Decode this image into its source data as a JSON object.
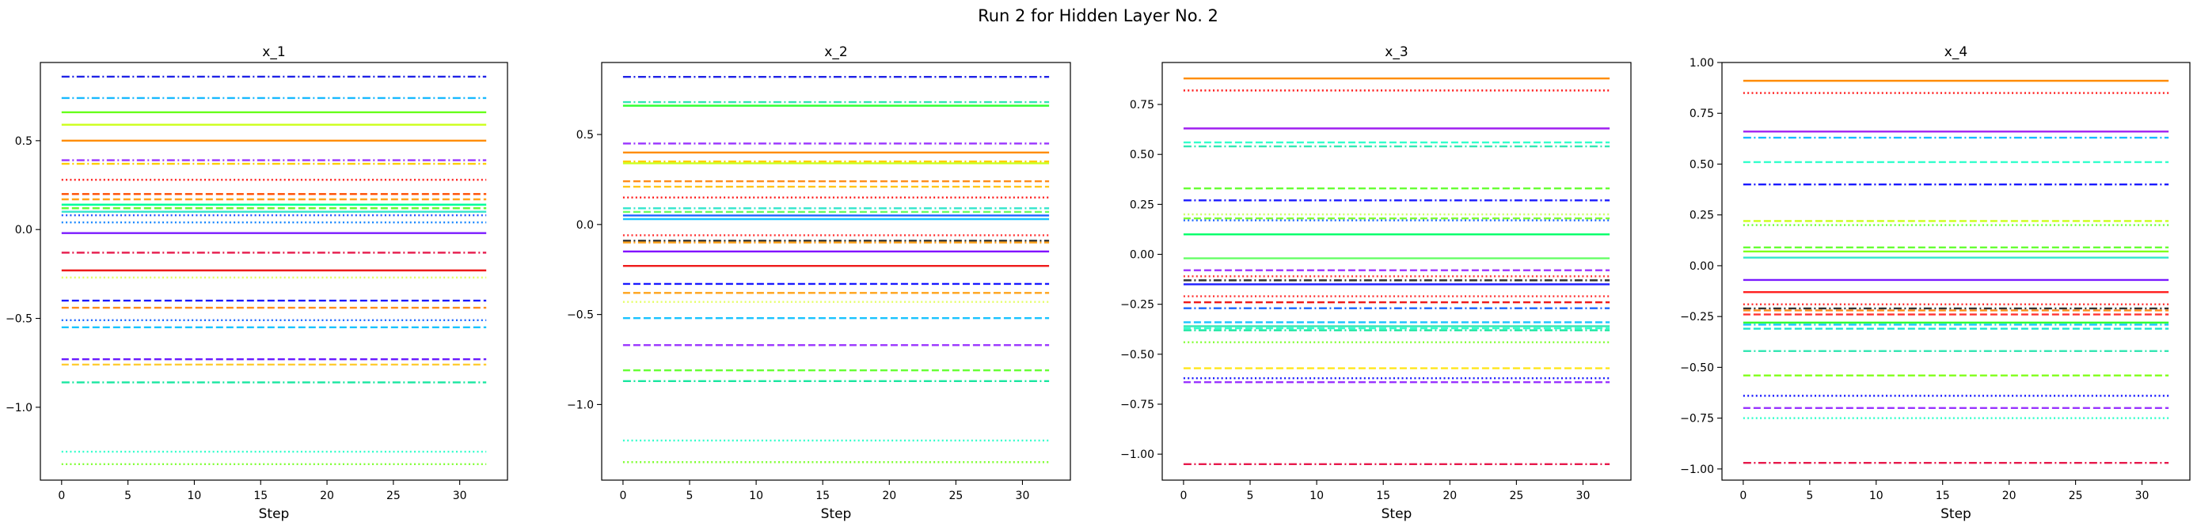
{
  "figure": {
    "title": "Run 2 for Hidden Layer No. 2"
  },
  "chart_data": [
    {
      "type": "line",
      "title": "x_1",
      "xlabel": "Step",
      "ylabel": "",
      "xlim": [
        -1.6,
        33.6
      ],
      "ylim": [
        -1.41,
        0.94
      ],
      "xticks": [
        0,
        5,
        10,
        15,
        20,
        25,
        30
      ],
      "yticks": [
        -1.0,
        -0.5,
        0.0,
        0.5
      ],
      "ytick_labels": [
        "−1.0",
        "−0.5",
        "0.0",
        "0.5"
      ],
      "grid": false,
      "x_range": [
        0,
        32
      ],
      "series": [
        {
          "value": 0.86,
          "color": "#1f22e6",
          "style": "dashdot"
        },
        {
          "value": 0.74,
          "color": "#19b9ff",
          "style": "dashdot"
        },
        {
          "value": 0.66,
          "color": "#66ff1a",
          "style": "solid"
        },
        {
          "value": 0.59,
          "color": "#ccff1a",
          "style": "solid"
        },
        {
          "value": 0.5,
          "color": "#ff8c00",
          "style": "solid"
        },
        {
          "value": 0.39,
          "color": "#9933ff",
          "style": "dashdot"
        },
        {
          "value": 0.37,
          "color": "#ffcc00",
          "style": "dashdot"
        },
        {
          "value": 0.28,
          "color": "#ff1a1a",
          "style": "dotted"
        },
        {
          "value": 0.2,
          "color": "#ff4d00",
          "style": "dashed"
        },
        {
          "value": 0.17,
          "color": "#ffa31a",
          "style": "dashed"
        },
        {
          "value": 0.14,
          "color": "#00ff99",
          "style": "solid"
        },
        {
          "value": 0.12,
          "color": "#66ff33",
          "style": "dashed"
        },
        {
          "value": 0.1,
          "color": "#33e6cc",
          "style": "solid"
        },
        {
          "value": 0.08,
          "color": "#2255ff",
          "style": "dotted"
        },
        {
          "value": 0.04,
          "color": "#1a88ff",
          "style": "dotted"
        },
        {
          "value": -0.02,
          "color": "#7a1aff",
          "style": "solid"
        },
        {
          "value": -0.13,
          "color": "#e6194b",
          "style": "dashdot"
        },
        {
          "value": -0.23,
          "color": "#ee1a1a",
          "style": "solid"
        },
        {
          "value": -0.27,
          "color": "#e6ff66",
          "style": "dotted"
        },
        {
          "value": -0.4,
          "color": "#1a1aff",
          "style": "dashed"
        },
        {
          "value": -0.44,
          "color": "#ff8c1a",
          "style": "dashed"
        },
        {
          "value": -0.51,
          "color": "#1a66ff",
          "style": "dotted"
        },
        {
          "value": -0.55,
          "color": "#19c3ff",
          "style": "dashed"
        },
        {
          "value": -0.73,
          "color": "#6a1aff",
          "style": "dashed"
        },
        {
          "value": -0.76,
          "color": "#ffcc33",
          "style": "dashed"
        },
        {
          "value": -0.86,
          "color": "#19e6a0",
          "style": "dashdot"
        },
        {
          "value": -1.25,
          "color": "#33ffcc",
          "style": "dotted"
        },
        {
          "value": -1.32,
          "color": "#80ff33",
          "style": "dotted"
        }
      ]
    },
    {
      "type": "line",
      "title": "x_2",
      "xlabel": "Step",
      "ylabel": "",
      "xlim": [
        -1.6,
        33.6
      ],
      "ylim": [
        -1.42,
        0.9
      ],
      "xticks": [
        0,
        5,
        10,
        15,
        20,
        25,
        30
      ],
      "yticks": [
        -1.0,
        -0.5,
        0.0,
        0.5
      ],
      "ytick_labels": [
        "−1.0",
        "−0.5",
        "0.0",
        "0.5"
      ],
      "grid": false,
      "x_range": [
        0,
        32
      ],
      "series": [
        {
          "value": 0.82,
          "color": "#1f22e6",
          "style": "dashdot"
        },
        {
          "value": 0.68,
          "color": "#33e6b3",
          "style": "dashdot"
        },
        {
          "value": 0.66,
          "color": "#33ff33",
          "style": "solid"
        },
        {
          "value": 0.45,
          "color": "#9933ff",
          "style": "dashdot"
        },
        {
          "value": 0.4,
          "color": "#ff8c00",
          "style": "solid"
        },
        {
          "value": 0.35,
          "color": "#ffcc00",
          "style": "dashdot"
        },
        {
          "value": 0.34,
          "color": "#ccff1a",
          "style": "solid"
        },
        {
          "value": 0.24,
          "color": "#ff8c1a",
          "style": "dashed"
        },
        {
          "value": 0.21,
          "color": "#ffc61a",
          "style": "dashed"
        },
        {
          "value": 0.15,
          "color": "#ff1a1a",
          "style": "dotted"
        },
        {
          "value": 0.09,
          "color": "#33e6cc",
          "style": "dashdot"
        },
        {
          "value": 0.07,
          "color": "#66ff66",
          "style": "dashed"
        },
        {
          "value": 0.05,
          "color": "#1a66ff",
          "style": "solid"
        },
        {
          "value": 0.03,
          "color": "#19c3ff",
          "style": "solid"
        },
        {
          "value": -0.06,
          "color": "#ff3333",
          "style": "dotted"
        },
        {
          "value": -0.09,
          "color": "#333333",
          "style": "dashdot"
        },
        {
          "value": -0.1,
          "color": "#ffa31a",
          "style": "dashdot"
        },
        {
          "value": -0.15,
          "color": "#8000ff",
          "style": "solid"
        },
        {
          "value": -0.23,
          "color": "#ee1a1a",
          "style": "solid"
        },
        {
          "value": -0.33,
          "color": "#1a1aff",
          "style": "dashed"
        },
        {
          "value": -0.38,
          "color": "#ffa31a",
          "style": "dashed"
        },
        {
          "value": -0.43,
          "color": "#e6ff66",
          "style": "dotted"
        },
        {
          "value": -0.52,
          "color": "#19c3ff",
          "style": "dashed"
        },
        {
          "value": -0.67,
          "color": "#9933ff",
          "style": "dashed"
        },
        {
          "value": -0.81,
          "color": "#66ff33",
          "style": "dashed"
        },
        {
          "value": -0.87,
          "color": "#19e6a0",
          "style": "dashdot"
        },
        {
          "value": -1.2,
          "color": "#33ffcc",
          "style": "dotted"
        },
        {
          "value": -1.32,
          "color": "#80ff33",
          "style": "dotted"
        }
      ]
    },
    {
      "type": "line",
      "title": "x_3",
      "xlabel": "Step",
      "ylabel": "",
      "xlim": [
        -1.6,
        33.6
      ],
      "ylim": [
        -1.13,
        0.96
      ],
      "xticks": [
        0,
        5,
        10,
        15,
        20,
        25,
        30
      ],
      "yticks": [
        -1.0,
        -0.75,
        -0.5,
        -0.25,
        0.0,
        0.25,
        0.5,
        0.75
      ],
      "ytick_labels": [
        "−1.00",
        "−0.75",
        "−0.50",
        "−0.25",
        "0.00",
        "0.25",
        "0.50",
        "0.75"
      ],
      "grid": false,
      "x_range": [
        0,
        32
      ],
      "series": [
        {
          "value": 0.88,
          "color": "#ff8c00",
          "style": "solid"
        },
        {
          "value": 0.82,
          "color": "#ff1a1a",
          "style": "dotted"
        },
        {
          "value": 0.63,
          "color": "#a020f0",
          "style": "solid"
        },
        {
          "value": 0.56,
          "color": "#33ffcc",
          "style": "dashed"
        },
        {
          "value": 0.54,
          "color": "#33e6b3",
          "style": "dashdot"
        },
        {
          "value": 0.33,
          "color": "#66ff33",
          "style": "dashed"
        },
        {
          "value": 0.27,
          "color": "#1a1aff",
          "style": "dashdot"
        },
        {
          "value": 0.2,
          "color": "#ccff66",
          "style": "dotted"
        },
        {
          "value": 0.18,
          "color": "#80ff33",
          "style": "dashed"
        },
        {
          "value": 0.17,
          "color": "#1a66ff",
          "style": "dotted"
        },
        {
          "value": 0.1,
          "color": "#00ff66",
          "style": "solid"
        },
        {
          "value": -0.02,
          "color": "#66ff66",
          "style": "solid"
        },
        {
          "value": -0.08,
          "color": "#9933ff",
          "style": "dashed"
        },
        {
          "value": -0.11,
          "color": "#ff3333",
          "style": "dotted"
        },
        {
          "value": -0.13,
          "color": "#333333",
          "style": "dashdot"
        },
        {
          "value": -0.15,
          "color": "#1a1aff",
          "style": "solid"
        },
        {
          "value": -0.21,
          "color": "#ff3333",
          "style": "dotted"
        },
        {
          "value": -0.24,
          "color": "#ee1a1a",
          "style": "dashed"
        },
        {
          "value": -0.27,
          "color": "#1a66ff",
          "style": "dashdot"
        },
        {
          "value": -0.34,
          "color": "#19c3ff",
          "style": "dashed"
        },
        {
          "value": -0.36,
          "color": "#33e6b3",
          "style": "solid"
        },
        {
          "value": -0.37,
          "color": "#33ffcc",
          "style": "dashed"
        },
        {
          "value": -0.38,
          "color": "#19e6a0",
          "style": "dashdot"
        },
        {
          "value": -0.44,
          "color": "#80ff33",
          "style": "dotted"
        },
        {
          "value": -0.57,
          "color": "#ffe61a",
          "style": "dashed"
        },
        {
          "value": -0.62,
          "color": "#1a1aff",
          "style": "dotted"
        },
        {
          "value": -0.64,
          "color": "#9933ff",
          "style": "dashed"
        },
        {
          "value": -1.05,
          "color": "#e6194b",
          "style": "dashdot"
        }
      ]
    },
    {
      "type": "line",
      "title": "x_4",
      "xlabel": "Step",
      "ylabel": "",
      "xlim": [
        -1.6,
        33.6
      ],
      "ylim": [
        -1.055,
        1.0
      ],
      "xticks": [
        0,
        5,
        10,
        15,
        20,
        25,
        30
      ],
      "yticks": [
        -1.0,
        -0.75,
        -0.5,
        -0.25,
        0.0,
        0.25,
        0.5,
        0.75,
        1.0
      ],
      "ytick_labels": [
        "−1.00",
        "−0.75",
        "−0.50",
        "−0.25",
        "0.00",
        "0.25",
        "0.50",
        "0.75",
        "1.00"
      ],
      "grid": false,
      "x_range": [
        0,
        32
      ],
      "series": [
        {
          "value": 0.91,
          "color": "#ff8c00",
          "style": "solid"
        },
        {
          "value": 0.85,
          "color": "#ff1a1a",
          "style": "dotted"
        },
        {
          "value": 0.66,
          "color": "#a020f0",
          "style": "solid"
        },
        {
          "value": 0.63,
          "color": "#19b9ff",
          "style": "dashdot"
        },
        {
          "value": 0.51,
          "color": "#33ffcc",
          "style": "dashed"
        },
        {
          "value": 0.4,
          "color": "#1a1aff",
          "style": "dashdot"
        },
        {
          "value": 0.22,
          "color": "#ccff1a",
          "style": "dashed"
        },
        {
          "value": 0.2,
          "color": "#66ff33",
          "style": "dotted"
        },
        {
          "value": 0.09,
          "color": "#66ff33",
          "style": "dashed"
        },
        {
          "value": 0.07,
          "color": "#80ff1a",
          "style": "solid"
        },
        {
          "value": 0.04,
          "color": "#33e6cc",
          "style": "solid"
        },
        {
          "value": -0.07,
          "color": "#7a1aff",
          "style": "solid"
        },
        {
          "value": -0.13,
          "color": "#ff1a1a",
          "style": "solid"
        },
        {
          "value": -0.19,
          "color": "#ff3333",
          "style": "dotted"
        },
        {
          "value": -0.21,
          "color": "#333333",
          "style": "dashdot"
        },
        {
          "value": -0.22,
          "color": "#ff8c1a",
          "style": "dashed"
        },
        {
          "value": -0.24,
          "color": "#ff3333",
          "style": "dashed"
        },
        {
          "value": -0.28,
          "color": "#33ff33",
          "style": "solid"
        },
        {
          "value": -0.29,
          "color": "#19c3ff",
          "style": "dashdot"
        },
        {
          "value": -0.31,
          "color": "#19e6cc",
          "style": "dashed"
        },
        {
          "value": -0.42,
          "color": "#33e6b3",
          "style": "dashdot"
        },
        {
          "value": -0.54,
          "color": "#80ff1a",
          "style": "dashed"
        },
        {
          "value": -0.64,
          "color": "#1a1aff",
          "style": "dotted"
        },
        {
          "value": -0.7,
          "color": "#9933ff",
          "style": "dashed"
        },
        {
          "value": -0.75,
          "color": "#33ffcc",
          "style": "dotted"
        },
        {
          "value": -0.97,
          "color": "#e6194b",
          "style": "dashdot"
        }
      ]
    }
  ]
}
